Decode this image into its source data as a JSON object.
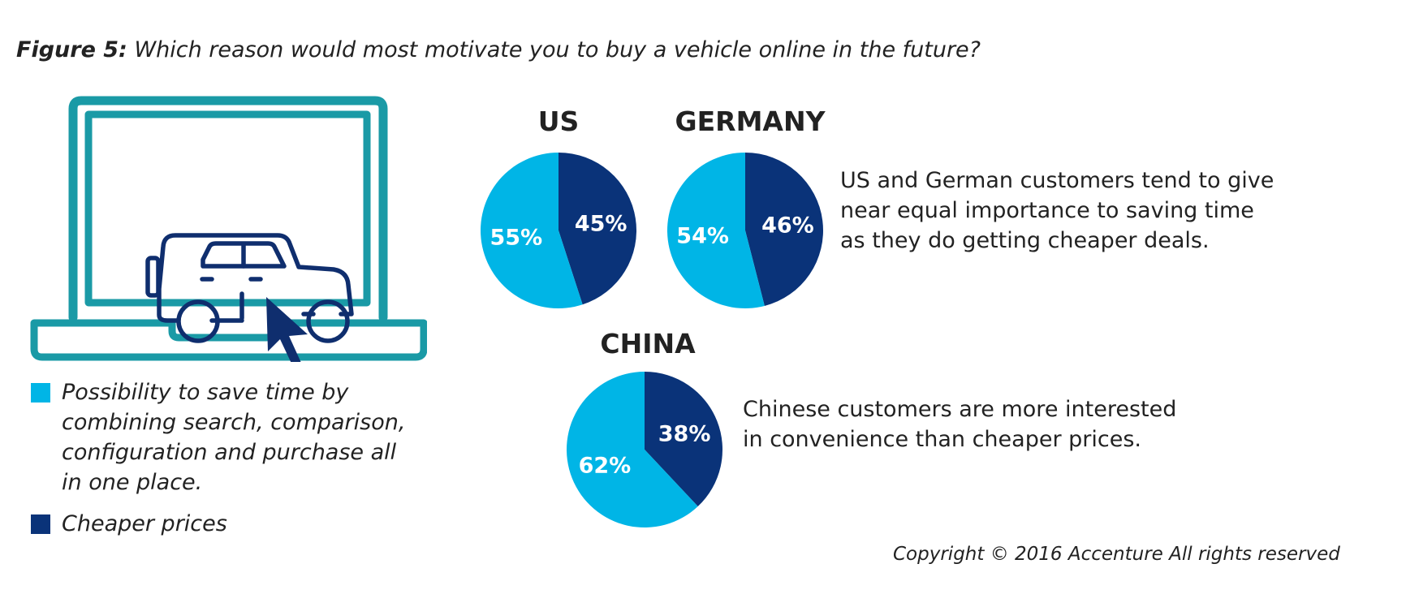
{
  "figure": {
    "label": "Figure 5:",
    "question": "Which reason would most motivate you to buy a vehicle online in the future?"
  },
  "colors": {
    "light_blue": "#00b5e6",
    "dark_blue": "#0a3379",
    "teal": "#1a9aa6",
    "illustration_blue": "#0f2e6e"
  },
  "legend": {
    "items": [
      {
        "label": "Possibility to save time by combining search, comparison, configuration and purchase all in one place.",
        "color": "#00b5e6"
      },
      {
        "label": "Cheaper prices",
        "color": "#0a3379"
      }
    ]
  },
  "chart_data": [
    {
      "type": "pie",
      "title": "US",
      "labels": [
        "Possibility to save time by combining search, comparison, configuration and purchase all in one place.",
        "Cheaper prices"
      ],
      "values": [
        55,
        45
      ],
      "value_labels": [
        "55%",
        "45%"
      ],
      "colors": [
        "#00b5e6",
        "#0a3379"
      ]
    },
    {
      "type": "pie",
      "title": "GERMANY",
      "labels": [
        "Possibility to save time by combining search, comparison, configuration and purchase all in one place.",
        "Cheaper prices"
      ],
      "values": [
        54,
        46
      ],
      "value_labels": [
        "54%",
        "46%"
      ],
      "colors": [
        "#00b5e6",
        "#0a3379"
      ]
    },
    {
      "type": "pie",
      "title": "CHINA",
      "labels": [
        "Possibility to save time by combining search, comparison, configuration and purchase all in one place.",
        "Cheaper prices"
      ],
      "values": [
        62,
        38
      ],
      "value_labels": [
        "62%",
        "38%"
      ],
      "colors": [
        "#00b5e6",
        "#0a3379"
      ]
    }
  ],
  "notes": {
    "us_germany": "US and German customers tend to give near equal importance to saving time as they do getting cheaper deals.",
    "china": "Chinese customers are more interested in convenience than cheaper prices."
  },
  "copyright": "Copyright © 2016 Accenture All rights reserved",
  "illustration": {
    "icons": [
      "laptop-icon",
      "car-icon",
      "cursor-icon"
    ]
  }
}
